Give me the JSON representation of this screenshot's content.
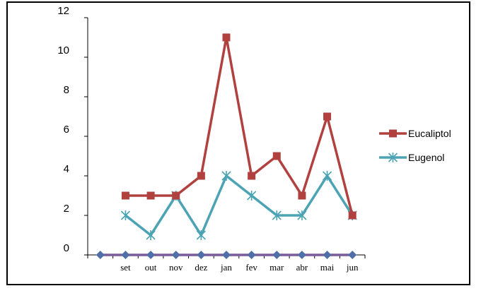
{
  "chart_data": {
    "type": "line",
    "categories": [
      "",
      "set",
      "out",
      "nov",
      "dez",
      "jan",
      "fev",
      "mar",
      "abr",
      "mai",
      "jun"
    ],
    "ylim": [
      0,
      12
    ],
    "yticks": [
      0,
      2,
      4,
      6,
      8,
      10,
      12
    ],
    "grid": false,
    "legend_position": "right",
    "series": [
      {
        "name": "Eucaliptol",
        "color": "#B0413E",
        "marker": "square",
        "values": [
          null,
          3,
          3,
          3,
          4,
          11,
          4,
          5,
          3,
          7,
          2
        ]
      },
      {
        "name": "Eugenol",
        "color": "#4BA3B4",
        "marker": "star",
        "values": [
          null,
          2,
          1,
          3,
          1,
          4,
          3,
          2,
          2,
          4,
          2
        ]
      },
      {
        "name": "",
        "color": "#7A5C9A",
        "marker": "diamond",
        "marker_color": "#4F6FA8",
        "values": [
          0,
          0,
          0,
          0,
          0,
          0,
          0,
          0,
          0,
          0,
          0
        ]
      }
    ]
  }
}
